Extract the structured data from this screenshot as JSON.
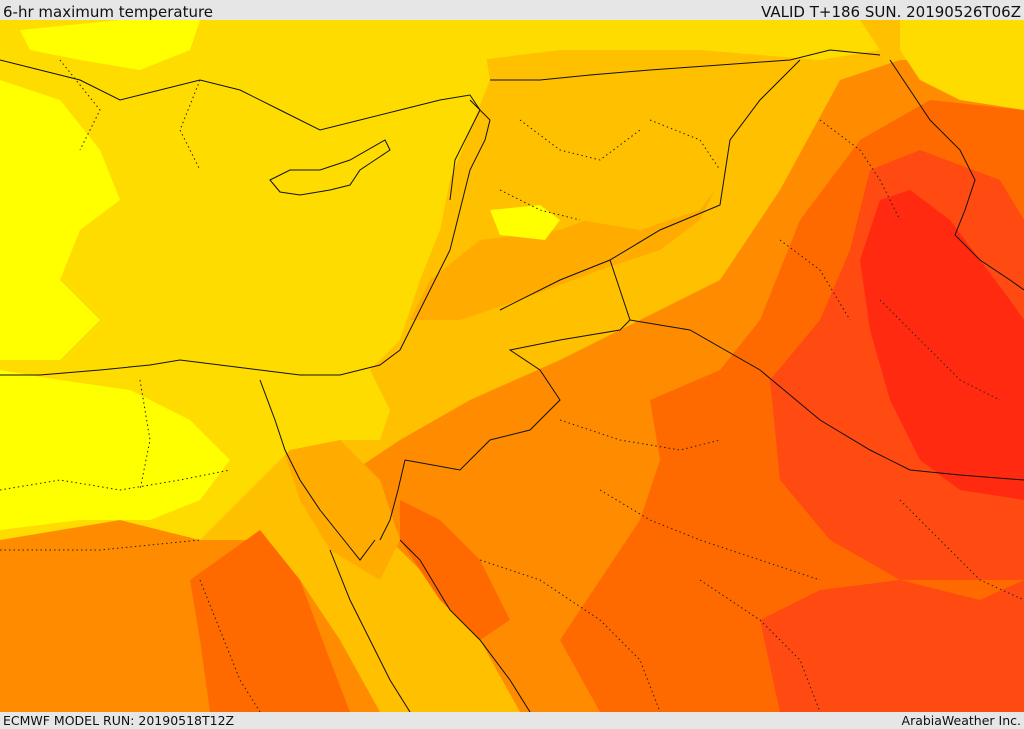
{
  "header": {
    "title": "6-hr maximum temperature",
    "valid_time": "VALID T+186 SUN. 20190526T06Z"
  },
  "footer": {
    "model_run": "ECMWF MODEL RUN: 20190518T12Z",
    "credit": "ArabiaWeather Inc."
  },
  "map": {
    "colors": {
      "yellow": "#ffff00",
      "gold": "#ffdc00",
      "amber": "#ffc000",
      "orange_light": "#ffab00",
      "orange": "#ff8c00",
      "orange_dark": "#ff6a00",
      "red_orange": "#ff4a12",
      "red": "#ff2a10"
    }
  }
}
